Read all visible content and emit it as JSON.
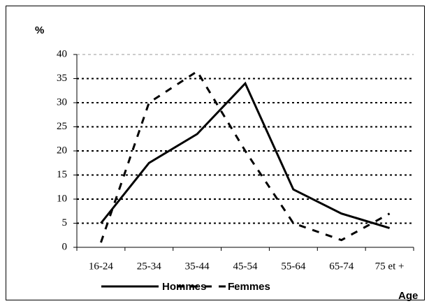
{
  "chart_data": {
    "type": "line",
    "ylabel": "%",
    "xlabel": "Age",
    "categories": [
      "16-24",
      "25-34",
      "35-44",
      "45-54",
      "55-64",
      "65-74",
      "75 et +"
    ],
    "series": [
      {
        "name": "Hommes",
        "color": "#000000",
        "dashed": false,
        "values": [
          5,
          17.5,
          23.5,
          34,
          12,
          7,
          4
        ]
      },
      {
        "name": "Femmes",
        "color": "#000000",
        "dashed": true,
        "values": [
          1,
          30,
          36.5,
          20,
          5,
          1.5,
          7
        ]
      }
    ],
    "ylim": [
      0,
      40
    ],
    "yticks": [
      0,
      5,
      10,
      15,
      20,
      25,
      30,
      35,
      40
    ],
    "grid": true,
    "legend": "bottom"
  }
}
